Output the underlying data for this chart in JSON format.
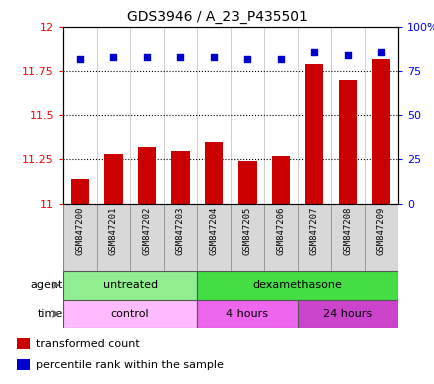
{
  "title": "GDS3946 / A_23_P435501",
  "samples": [
    "GSM847200",
    "GSM847201",
    "GSM847202",
    "GSM847203",
    "GSM847204",
    "GSM847205",
    "GSM847206",
    "GSM847207",
    "GSM847208",
    "GSM847209"
  ],
  "transformed_count": [
    11.14,
    11.28,
    11.32,
    11.3,
    11.35,
    11.24,
    11.27,
    11.79,
    11.7,
    11.82
  ],
  "percentile_rank": [
    82,
    83,
    83,
    83,
    83,
    82,
    82,
    86,
    84,
    86
  ],
  "ylim_left": [
    11.0,
    12.0
  ],
  "ylim_right": [
    0,
    100
  ],
  "yticks_left": [
    11.0,
    11.25,
    11.5,
    11.75,
    12.0
  ],
  "yticks_right": [
    0,
    25,
    50,
    75,
    100
  ],
  "ytick_labels_left": [
    "11",
    "11.25",
    "11.5",
    "11.75",
    "12"
  ],
  "ytick_labels_right": [
    "0",
    "25",
    "50",
    "75",
    "100%"
  ],
  "bar_color": "#cc0000",
  "scatter_color": "#0000cc",
  "bar_bottom": 11.0,
  "agent_groups": [
    {
      "label": "untreated",
      "start": 0,
      "end": 4,
      "color": "#90ee90"
    },
    {
      "label": "dexamethasone",
      "start": 4,
      "end": 10,
      "color": "#44dd44"
    }
  ],
  "time_groups": [
    {
      "label": "control",
      "start": 0,
      "end": 4,
      "color": "#ffbbff"
    },
    {
      "label": "4 hours",
      "start": 4,
      "end": 7,
      "color": "#ee66ee"
    },
    {
      "label": "24 hours",
      "start": 7,
      "end": 10,
      "color": "#cc44cc"
    }
  ],
  "agent_label": "agent",
  "time_label": "time",
  "legend_items": [
    {
      "color": "#cc0000",
      "label": "transformed count"
    },
    {
      "color": "#0000cc",
      "label": "percentile rank within the sample"
    }
  ],
  "sample_box_color": "#d8d8d8",
  "sample_box_edge": "#888888"
}
